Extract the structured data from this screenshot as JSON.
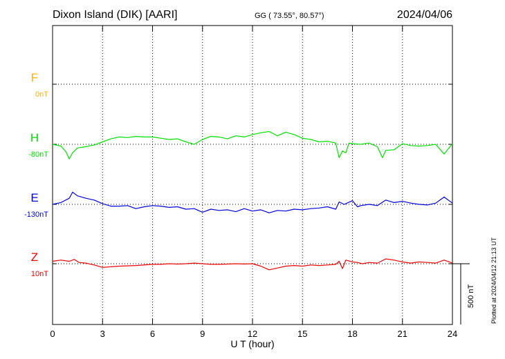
{
  "header": {
    "station": "Dixon Island (DIK)  [AARI]",
    "coords": "GG ( 73.55°,  80.57°)",
    "date": "2024/04/06"
  },
  "footer": {
    "plotted": "Plotted at 2024/04/12 21:13 UT"
  },
  "colors": {
    "F": "#ffb000",
    "H": "#00e000",
    "E": "#0000dd",
    "Z": "#ee0000",
    "axis": "#000000",
    "grid": "#000000"
  },
  "chart_data": {
    "type": "line",
    "xlabel": "U T (hour)",
    "xlim": [
      0,
      24
    ],
    "xticks": [
      0,
      3,
      6,
      9,
      12,
      15,
      18,
      21,
      24
    ],
    "grid": true,
    "scale_bar": {
      "label": "500 nT",
      "value_nT": 500
    },
    "channels": [
      {
        "name": "F",
        "baseline": "0nT",
        "data": []
      },
      {
        "name": "H",
        "baseline": "-80nT",
        "x": [
          0,
          0.5,
          0.8,
          1.0,
          1.2,
          1.5,
          2.0,
          2.5,
          3.0,
          3.5,
          4.0,
          4.5,
          5.0,
          5.5,
          6.0,
          6.5,
          7.0,
          7.5,
          8.0,
          8.5,
          9.0,
          9.5,
          10.0,
          10.5,
          11.0,
          11.5,
          12.0,
          12.5,
          13.0,
          13.5,
          14.0,
          14.5,
          15.0,
          15.5,
          16.0,
          16.5,
          17.0,
          17.2,
          17.4,
          17.6,
          17.8,
          18.0,
          18.5,
          19.0,
          19.5,
          19.8,
          20.0,
          20.5,
          21.0,
          21.5,
          22.0,
          22.5,
          23.0,
          23.5,
          24.0
        ],
        "y": [
          0,
          -15,
          -60,
          -120,
          -70,
          -30,
          -20,
          -5,
          20,
          45,
          60,
          55,
          65,
          60,
          60,
          50,
          40,
          45,
          20,
          0,
          40,
          65,
          60,
          45,
          70,
          60,
          80,
          95,
          105,
          70,
          100,
          80,
          50,
          40,
          20,
          25,
          10,
          -110,
          -55,
          -70,
          10,
          5,
          0,
          10,
          -20,
          -110,
          -50,
          -45,
          5,
          -10,
          -15,
          -10,
          0,
          -80,
          5
        ]
      },
      {
        "name": "E",
        "baseline": "-130nT",
        "x": [
          0,
          0.5,
          1.0,
          1.2,
          1.5,
          2.0,
          2.5,
          3.0,
          3.5,
          4.0,
          4.5,
          5.0,
          5.5,
          6.0,
          6.5,
          7.0,
          7.5,
          8.0,
          8.5,
          9.0,
          9.5,
          10.0,
          10.5,
          11.0,
          11.5,
          12.0,
          12.5,
          13.0,
          13.5,
          14.0,
          14.5,
          15.0,
          15.5,
          16.0,
          16.5,
          17.0,
          17.2,
          17.5,
          18.0,
          18.3,
          18.5,
          19.0,
          19.5,
          20.0,
          20.5,
          21.0,
          21.5,
          22.0,
          22.5,
          23.0,
          23.5,
          24.0
        ],
        "y": [
          0,
          15,
          50,
          100,
          70,
          50,
          35,
          5,
          -15,
          -15,
          -10,
          -35,
          -20,
          -10,
          -15,
          -25,
          -20,
          -40,
          -35,
          -65,
          -40,
          -50,
          -45,
          -60,
          -35,
          -55,
          -45,
          -70,
          -50,
          -55,
          -40,
          -45,
          -35,
          -30,
          -20,
          -40,
          20,
          0,
          30,
          -20,
          -10,
          0,
          -10,
          35,
          15,
          25,
          10,
          0,
          -5,
          10,
          60,
          10
        ]
      },
      {
        "name": "Z",
        "baseline": "10nT",
        "x": [
          0,
          0.5,
          1.0,
          1.3,
          1.6,
          2.0,
          2.5,
          3.0,
          3.5,
          4.0,
          5.0,
          6.0,
          6.5,
          7.0,
          7.5,
          8.0,
          8.5,
          9.0,
          9.5,
          10.0,
          10.5,
          11.0,
          11.5,
          12.0,
          12.5,
          13.0,
          13.5,
          14.0,
          14.5,
          15.0,
          15.5,
          16.0,
          16.5,
          17.0,
          17.2,
          17.4,
          17.6,
          18.0,
          18.3,
          18.6,
          19.0,
          19.5,
          20.0,
          20.5,
          21.0,
          21.5,
          22.0,
          22.5,
          23.0,
          23.5,
          24.0
        ],
        "y": [
          20,
          30,
          20,
          35,
          10,
          5,
          -10,
          -30,
          -25,
          -20,
          -15,
          -5,
          -5,
          0,
          -3,
          0,
          5,
          0,
          -5,
          -5,
          -3,
          0,
          -2,
          0,
          -20,
          -50,
          -35,
          -20,
          -15,
          -20,
          -10,
          -15,
          -10,
          -5,
          20,
          -40,
          30,
          15,
          10,
          0,
          10,
          5,
          40,
          30,
          15,
          5,
          15,
          10,
          5,
          30,
          5
        ]
      }
    ]
  }
}
